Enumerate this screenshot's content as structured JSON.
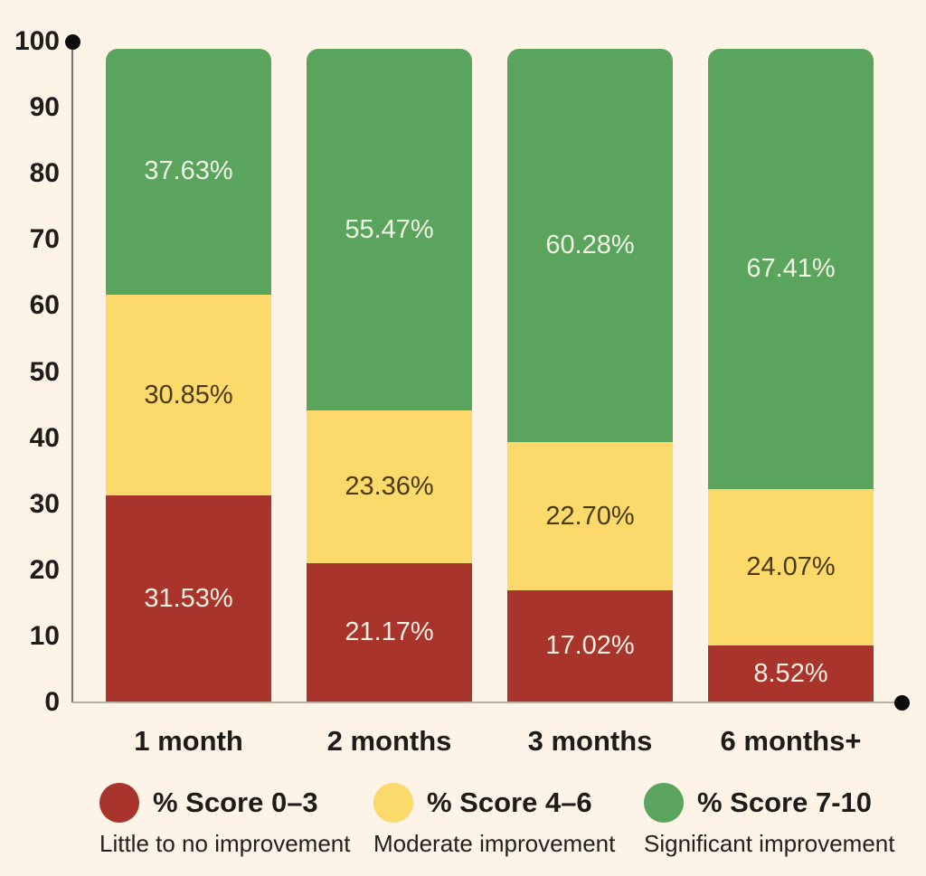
{
  "background_color": "#FDF3E7",
  "axis": {
    "line_color_vertical": "#75726A",
    "line_color_horizontal": "#B5AFA4",
    "end_dot_color": "#0D0D0D",
    "tick_text_color": "#1E1C19"
  },
  "chart_data": {
    "type": "bar",
    "stacked": true,
    "title": "",
    "xlabel": "",
    "ylabel": "",
    "ylim": [
      0,
      100
    ],
    "y_tick_step": 10,
    "y_ticks": [
      "0",
      "10",
      "20",
      "30",
      "40",
      "50",
      "60",
      "70",
      "80",
      "90",
      "100"
    ],
    "grid": false,
    "legend_position": "bottom",
    "categories": [
      "1 month",
      "2 months",
      "3 months",
      "6 months+"
    ],
    "series": [
      {
        "key": "score-0-3",
        "name": "% Score 0–3",
        "description": "Little to no improvement",
        "color": "#A8342B",
        "label_color": "#F9F0E1",
        "values": [
          31.53,
          21.17,
          17.02,
          8.52
        ],
        "labels": [
          "31.53%",
          "21.17%",
          "17.02%",
          "8.52%"
        ]
      },
      {
        "key": "score-4-6",
        "name": "% Score 4–6",
        "description": "Moderate improvement",
        "color": "#FBD96B",
        "label_color": "#4A3A15",
        "values": [
          30.85,
          23.36,
          22.7,
          24.07
        ],
        "labels": [
          "30.85%",
          "23.36%",
          "22.70%",
          "24.07%"
        ]
      },
      {
        "key": "score-7-10",
        "name": "% Score 7-10",
        "description": "Significant improvement",
        "color": "#5BA45D",
        "label_color": "#EFF4E6",
        "values": [
          37.63,
          55.47,
          60.28,
          67.41
        ],
        "labels": [
          "37.63%",
          "55.47%",
          "60.28%",
          "67.41%"
        ]
      }
    ]
  }
}
